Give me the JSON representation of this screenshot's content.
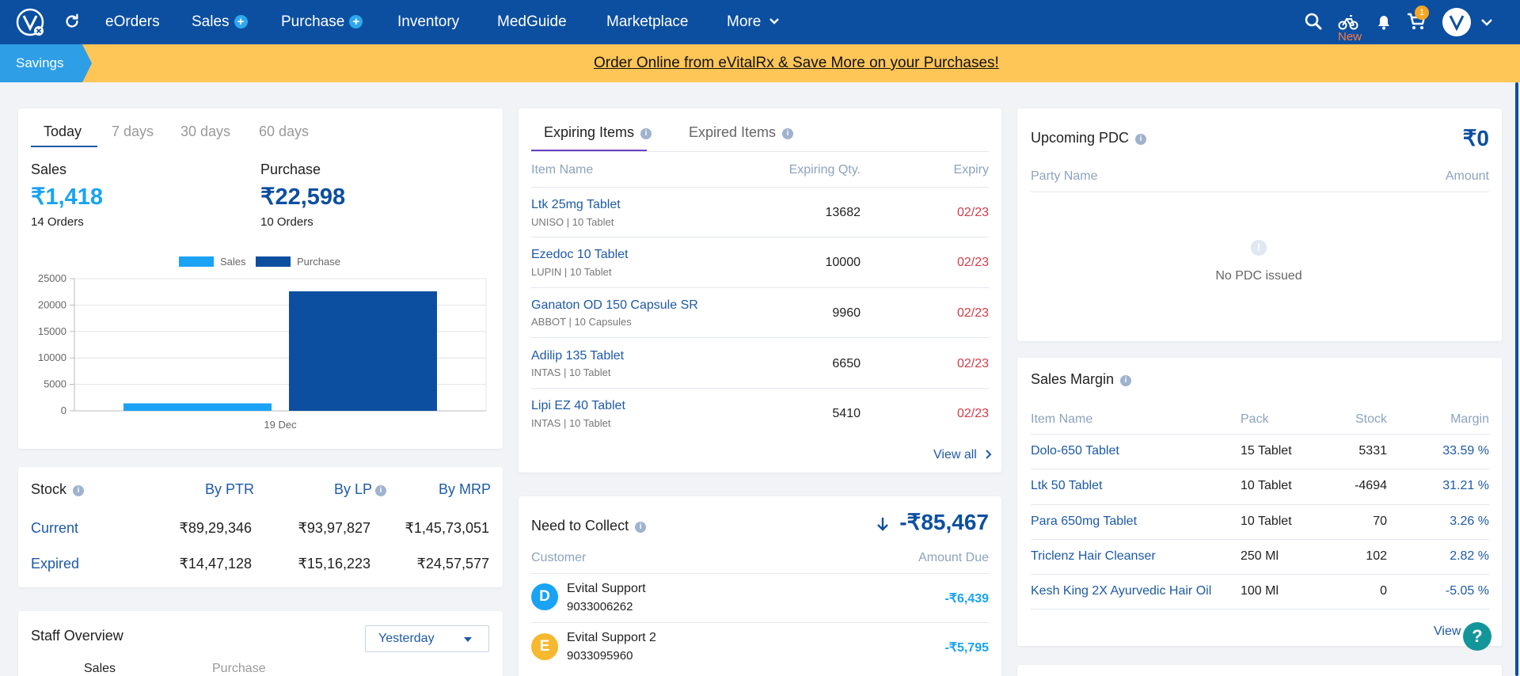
{
  "nav": {
    "items": [
      "eOrders",
      "Sales",
      "Purchase",
      "Inventory",
      "MedGuide",
      "Marketplace",
      "More"
    ],
    "new_label": "New",
    "cart_count": "1"
  },
  "banner": {
    "savings_label": "Savings",
    "promo_text": "Order Online from eVitalRx & Save More on your Purchases!"
  },
  "summary": {
    "tabs": [
      "Today",
      "7 days",
      "30 days",
      "60 days"
    ],
    "sales_label": "Sales",
    "sales_value": "₹1,418",
    "sales_orders": "14 Orders",
    "purchase_label": "Purchase",
    "purchase_value": "₹22,598",
    "purchase_orders": "10 Orders"
  },
  "chart_data": {
    "type": "bar",
    "categories": [
      "19 Dec"
    ],
    "series": [
      {
        "name": "Sales",
        "values": [
          1418
        ],
        "color": "#1aa3f5"
      },
      {
        "name": "Purchase",
        "values": [
          22598
        ],
        "color": "#0c4fa0"
      }
    ],
    "yticks": [
      "25000",
      "20000",
      "15000",
      "10000",
      "5000",
      "0"
    ],
    "ylim": [
      0,
      25000
    ],
    "legend": "top",
    "grid": true
  },
  "stock": {
    "title": "Stock",
    "col_ptr": "By PTR",
    "col_lp": "By LP",
    "col_mrp": "By MRP",
    "rows": [
      {
        "label": "Current",
        "ptr": "₹89,29,346",
        "lp": "₹93,97,827",
        "mrp": "₹1,45,73,051"
      },
      {
        "label": "Expired",
        "ptr": "₹14,47,128",
        "lp": "₹15,16,223",
        "mrp": "₹24,57,577"
      }
    ]
  },
  "staff": {
    "title": "Staff Overview",
    "period": "Yesterday",
    "col1": "Sales",
    "col2": "Purchase"
  },
  "expiring": {
    "tab_expiring": "Expiring Items",
    "tab_expired": "Expired Items",
    "col_item": "Item Name",
    "col_qty": "Expiring Qty.",
    "col_expiry": "Expiry",
    "rows": [
      {
        "name": "Ltk 25mg Tablet",
        "mfr": "UNISO",
        "pack": "10 Tablet",
        "qty": "13682",
        "expiry": "02/23"
      },
      {
        "name": "Ezedoc 10 Tablet",
        "mfr": "LUPIN",
        "pack": "10 Tablet",
        "qty": "10000",
        "expiry": "02/23"
      },
      {
        "name": "Ganaton OD 150 Capsule SR",
        "mfr": "ABBOT",
        "pack": "10 Capsules",
        "qty": "9960",
        "expiry": "02/23"
      },
      {
        "name": "Adilip 135 Tablet",
        "mfr": "INTAS",
        "pack": "10 Tablet",
        "qty": "6650",
        "expiry": "02/23"
      },
      {
        "name": "Lipi EZ 40 Tablet",
        "mfr": "INTAS",
        "pack": "10 Tablet",
        "qty": "5410",
        "expiry": "02/23"
      }
    ],
    "view_all": "View all"
  },
  "collect": {
    "title": "Need to Collect",
    "total": "-₹85,467",
    "col_customer": "Customer",
    "col_amount": "Amount Due",
    "rows": [
      {
        "initial": "D",
        "name": "Evital Support",
        "phone": "9033006262",
        "amount": "-₹6,439",
        "color": "#1aa3f5"
      },
      {
        "initial": "E",
        "name": "Evital Support 2",
        "phone": "9033095960",
        "amount": "-₹5,795",
        "color": "#f5b82e"
      }
    ]
  },
  "pdc": {
    "title": "Upcoming PDC",
    "amount": "₹0",
    "col_party": "Party Name",
    "col_amount": "Amount",
    "empty_text": "No PDC issued"
  },
  "margin": {
    "title": "Sales Margin",
    "col_item": "Item Name",
    "col_pack": "Pack",
    "col_stock": "Stock",
    "col_margin": "Margin",
    "rows": [
      {
        "name": "Dolo-650 Tablet",
        "pack": "15 Tablet",
        "stock": "5331",
        "margin": "33.59 %"
      },
      {
        "name": "Ltk 50 Tablet",
        "pack": "10 Tablet",
        "stock": "-4694",
        "margin": "31.21 %"
      },
      {
        "name": "Para 650mg Tablet",
        "pack": "10 Tablet",
        "stock": "70",
        "margin": "3.26 %"
      },
      {
        "name": "Triclenz Hair Cleanser",
        "pack": "250 Ml",
        "stock": "102",
        "margin": "2.82 %"
      },
      {
        "name": "Kesh King 2X Ayurvedic Hair Oil",
        "pack": "100 Ml",
        "stock": "0",
        "margin": "-5.05 %"
      }
    ],
    "view_all": "View all"
  },
  "help_label": "?"
}
